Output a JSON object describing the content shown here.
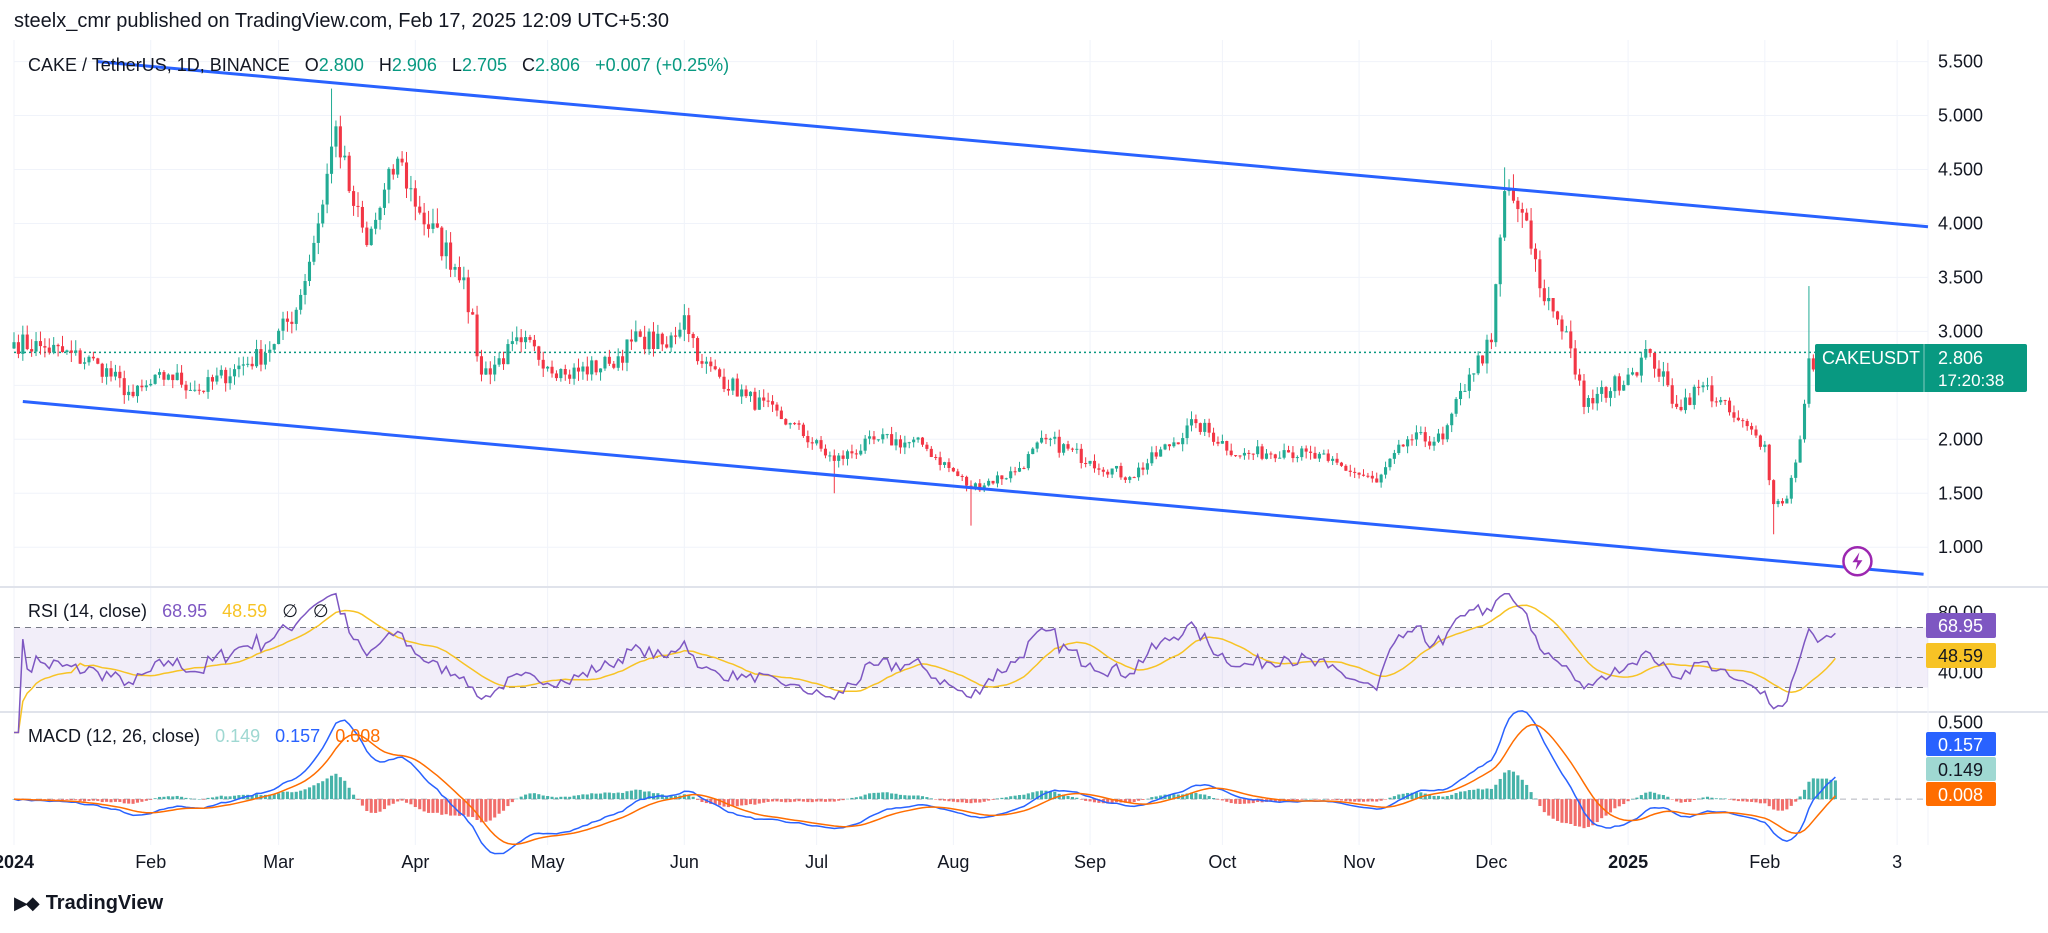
{
  "header": {
    "published": "steelx_cmr published on TradingView.com, Feb 17, 2025 12:09 UTC+5:30"
  },
  "footer": {
    "logo_text": "TradingView",
    "logo_icon": "tradingview-logo-icon"
  },
  "colors": {
    "up": "#22ab94",
    "down": "#f23645",
    "channel": "#2962ff",
    "rsi": "#7e57c2",
    "rsi_ma": "#f7c325",
    "macd": "#2962ff",
    "signal": "#ff6d00",
    "hist_up": "#26a69a",
    "hist_down": "#ef5350",
    "price_tag": "#089981"
  },
  "chart_data": [
    {
      "type": "candlestick",
      "legend": {
        "symbol": "CAKE / TetherUS, 1D, BINANCE",
        "o_label": "O",
        "o": "2.800",
        "h_label": "H",
        "h": "2.906",
        "l_label": "L",
        "l": "2.705",
        "c_label": "C",
        "c": "2.806",
        "change": "+0.007 (+0.25%)"
      },
      "x_range": [
        "2024-01-01",
        "2025-03-10"
      ],
      "ylim": [
        0.65,
        5.7
      ],
      "y_ticks": [
        "5.500",
        "5.000",
        "4.500",
        "4.000",
        "3.500",
        "3.000",
        "2.500",
        "2.000",
        "1.500",
        "1.000"
      ],
      "x_ticks": [
        {
          "date": "2024-01-01",
          "label": "2024",
          "bold": true
        },
        {
          "date": "2024-02-01",
          "label": "Feb"
        },
        {
          "date": "2024-03-01",
          "label": "Mar"
        },
        {
          "date": "2024-04-01",
          "label": "Apr"
        },
        {
          "date": "2024-05-01",
          "label": "May"
        },
        {
          "date": "2024-06-01",
          "label": "Jun"
        },
        {
          "date": "2024-07-01",
          "label": "Jul"
        },
        {
          "date": "2024-08-01",
          "label": "Aug"
        },
        {
          "date": "2024-09-01",
          "label": "Sep"
        },
        {
          "date": "2024-10-01",
          "label": "Oct"
        },
        {
          "date": "2024-11-01",
          "label": "Nov"
        },
        {
          "date": "2024-12-01",
          "label": "Dec"
        },
        {
          "date": "2025-01-01",
          "label": "2025",
          "bold": true
        },
        {
          "date": "2025-02-01",
          "label": "Feb"
        },
        {
          "date": "2025-03-03",
          "label": "3"
        }
      ],
      "key_closes": [
        [
          "2024-01-01",
          2.9
        ],
        [
          "2024-01-08",
          2.85
        ],
        [
          "2024-01-20",
          2.7
        ],
        [
          "2024-01-28",
          2.4
        ],
        [
          "2024-02-05",
          2.6
        ],
        [
          "2024-02-12",
          2.45
        ],
        [
          "2024-02-20",
          2.65
        ],
        [
          "2024-02-27",
          2.8
        ],
        [
          "2024-03-05",
          3.2
        ],
        [
          "2024-03-10",
          4.0
        ],
        [
          "2024-03-14",
          4.9
        ],
        [
          "2024-03-17",
          4.3
        ],
        [
          "2024-03-21",
          3.8
        ],
        [
          "2024-03-28",
          4.6
        ],
        [
          "2024-04-02",
          4.1
        ],
        [
          "2024-04-12",
          3.5
        ],
        [
          "2024-04-16",
          2.6
        ],
        [
          "2024-04-25",
          2.9
        ],
        [
          "2024-05-05",
          2.6
        ],
        [
          "2024-05-15",
          2.7
        ],
        [
          "2024-05-22",
          2.95
        ],
        [
          "2024-05-28",
          2.85
        ],
        [
          "2024-06-01",
          3.15
        ],
        [
          "2024-06-05",
          2.7
        ],
        [
          "2024-06-15",
          2.4
        ],
        [
          "2024-06-25",
          2.15
        ],
        [
          "2024-07-05",
          1.8
        ],
        [
          "2024-07-15",
          2.0
        ],
        [
          "2024-07-25",
          1.95
        ],
        [
          "2024-08-05",
          1.55
        ],
        [
          "2024-08-15",
          1.7
        ],
        [
          "2024-08-22",
          2.0
        ],
        [
          "2024-09-01",
          1.8
        ],
        [
          "2024-09-10",
          1.65
        ],
        [
          "2024-09-25",
          2.15
        ],
        [
          "2024-10-05",
          1.85
        ],
        [
          "2024-10-15",
          1.9
        ],
        [
          "2024-10-25",
          1.8
        ],
        [
          "2024-11-05",
          1.6
        ],
        [
          "2024-11-12",
          2.0
        ],
        [
          "2024-11-20",
          2.0
        ],
        [
          "2024-11-26",
          2.6
        ],
        [
          "2024-12-01",
          2.9
        ],
        [
          "2024-12-04",
          4.3
        ],
        [
          "2024-12-08",
          4.1
        ],
        [
          "2024-12-12",
          3.4
        ],
        [
          "2024-12-18",
          3.0
        ],
        [
          "2024-12-22",
          2.3
        ],
        [
          "2025-01-01",
          2.6
        ],
        [
          "2025-01-06",
          2.8
        ],
        [
          "2025-01-12",
          2.3
        ],
        [
          "2025-01-18",
          2.5
        ],
        [
          "2025-01-25",
          2.2
        ],
        [
          "2025-02-01",
          1.95
        ],
        [
          "2025-02-03",
          1.4
        ],
        [
          "2025-02-06",
          1.45
        ],
        [
          "2025-02-09",
          2.0
        ],
        [
          "2025-02-11",
          2.75
        ],
        [
          "2025-02-13",
          2.5
        ],
        [
          "2025-02-17",
          2.806
        ]
      ],
      "channel_lines": [
        {
          "from": [
            "2024-01-20",
            5.5
          ],
          "to": [
            "2025-03-10",
            3.97
          ]
        },
        {
          "from": [
            "2024-01-03",
            2.35
          ],
          "to": [
            "2025-03-09",
            0.75
          ]
        }
      ],
      "last_price": {
        "label": "CAKEUSDT",
        "price": "2.806",
        "countdown": "17:20:38",
        "value": 2.806
      },
      "flash_icon": "lightning-icon"
    },
    {
      "type": "line",
      "title": "RSI (14, close)",
      "legend_values": [
        "68.95",
        "48.59"
      ],
      "legend_symbols": [
        "∅",
        "∅"
      ],
      "series": [
        {
          "name": "RSI",
          "value_label": "68.95"
        },
        {
          "name": "RSI-based MA",
          "value_label": "48.59"
        }
      ],
      "ylim": [
        15,
        95
      ],
      "y_ticks": [
        "80.00",
        "40.00"
      ],
      "bands": [
        70,
        50,
        30
      ]
    },
    {
      "type": "histogram",
      "title": "MACD (12, 26, close)",
      "legend_values": [
        "0.149",
        "0.157",
        "0.008"
      ],
      "series": [
        {
          "name": "Histogram",
          "value_label": "0.149"
        },
        {
          "name": "MACD",
          "value_label": "0.157"
        },
        {
          "name": "Signal",
          "value_label": "0.008"
        }
      ],
      "ylim": [
        -0.3,
        0.55
      ],
      "y_ticks": [
        "0.500"
      ]
    }
  ]
}
